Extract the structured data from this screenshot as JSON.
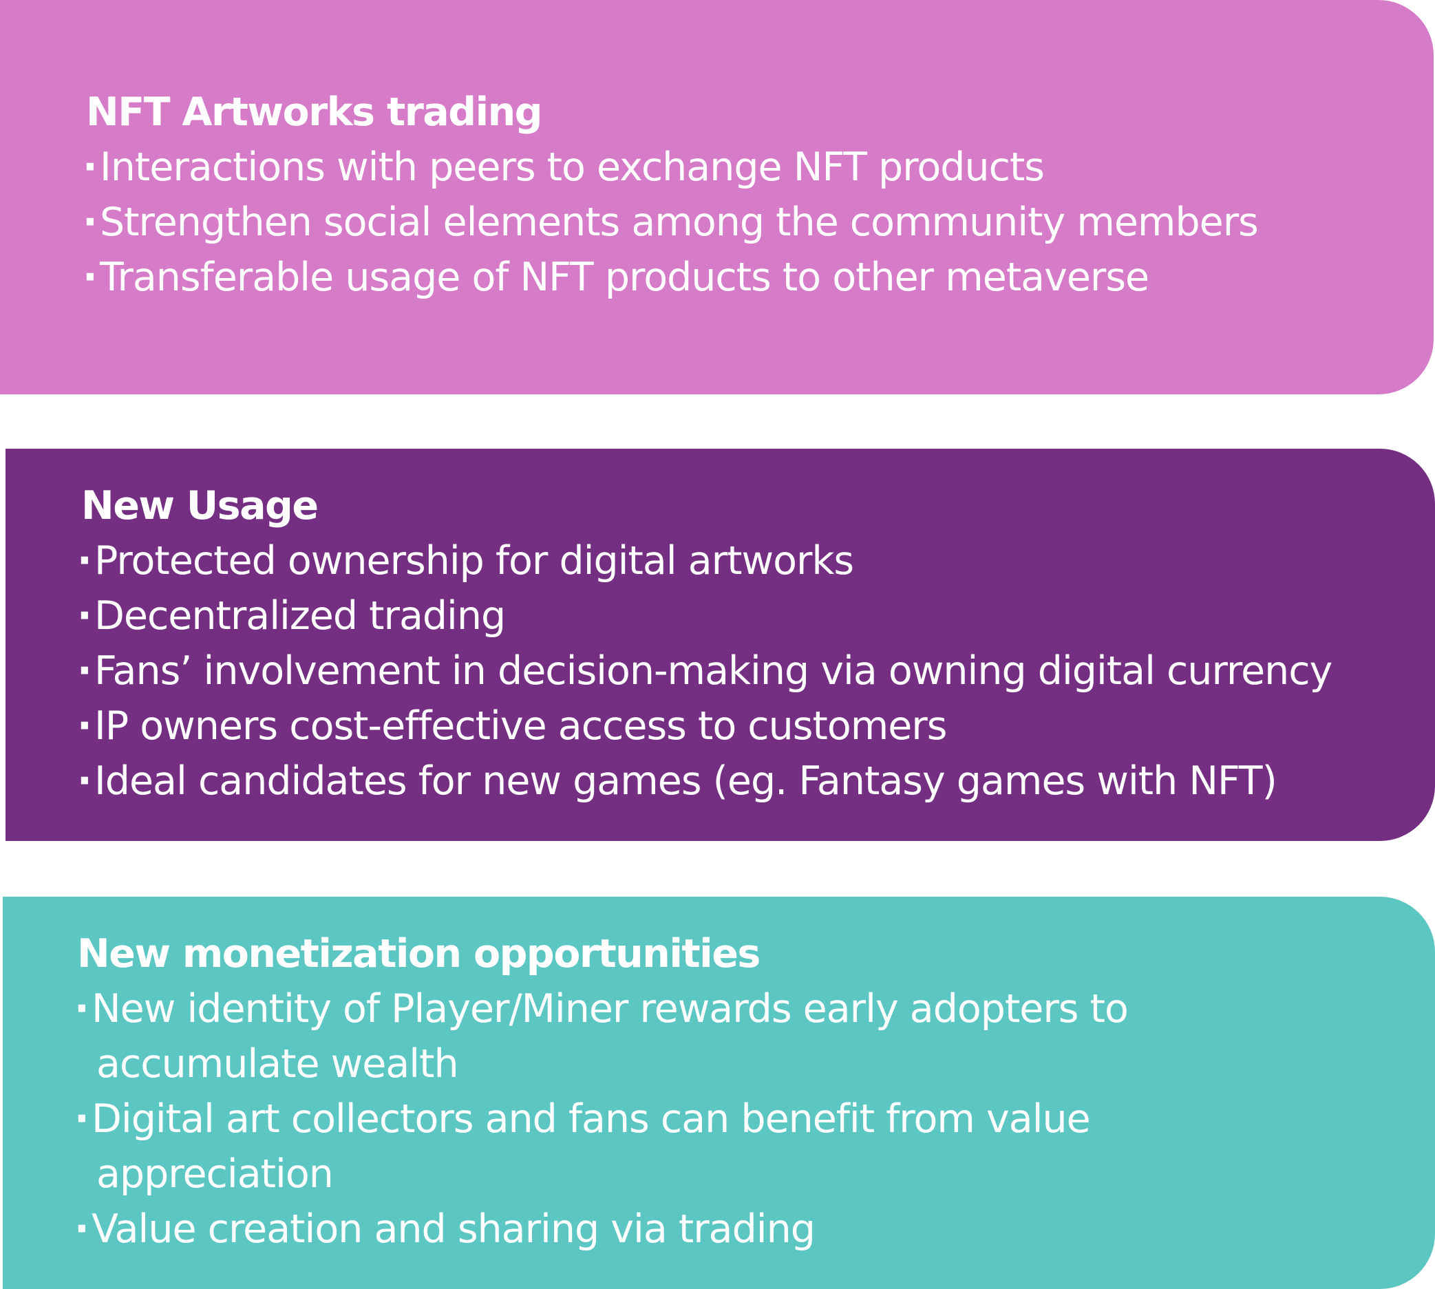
{
  "cards": [
    {
      "color": "#d67bc8",
      "title": "NFT Artworks trading",
      "items": [
        [
          "Interactions with peers to exchange NFT products"
        ],
        [
          "Strengthen social elements among the community members"
        ],
        [
          "Transferable usage of NFT products to other metaverse"
        ]
      ]
    },
    {
      "color": "#742f83",
      "title": "New Usage",
      "items": [
        [
          "Protected ownership for digital artworks"
        ],
        [
          "Decentralized trading"
        ],
        [
          "Fans’ involvement in decision-making via owning digital currency"
        ],
        [
          "IP owners cost-effective access to customers"
        ],
        [
          "Ideal candidates for new games (eg. Fantasy games with NFT)"
        ]
      ]
    },
    {
      "color": "#5cc6c2",
      "title": "New monetization opportunities",
      "items": [
        [
          "New identity of Player/Miner rewards early adopters to",
          "accumulate wealth"
        ],
        [
          "Digital art collectors and fans can benefit from value",
          "appreciation"
        ],
        [
          "Value creation and sharing via trading"
        ]
      ]
    }
  ]
}
